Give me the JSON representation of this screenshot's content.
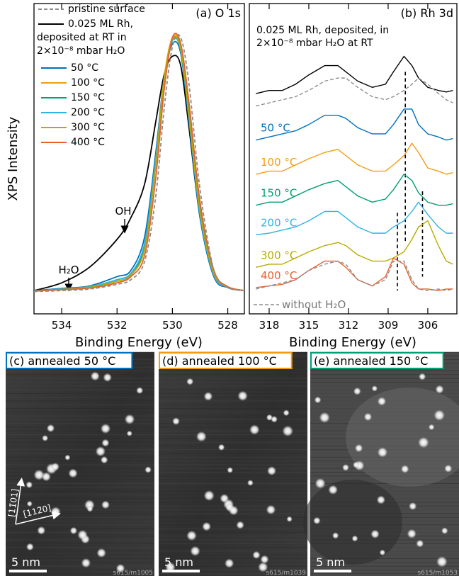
{
  "chart_data": [
    {
      "type": "line",
      "title": "(a) O 1s",
      "y_label": "XPS Intensity",
      "x_label": "Binding Energy (eV)",
      "x": [
        535,
        534,
        533,
        532,
        531.5,
        531,
        530.6,
        530.3,
        530,
        529.7,
        529.4,
        529,
        528.5,
        528,
        527.4
      ],
      "xlim": [
        535,
        527.4
      ],
      "xticks": [
        534,
        532,
        530,
        528
      ],
      "ylim": [
        0,
        1
      ],
      "series": [
        {
          "name": "pristine surface",
          "color": "#8c8c8c",
          "dashed": true,
          "values": [
            0.072,
            0.075,
            0.08,
            0.095,
            0.11,
            0.17,
            0.38,
            0.66,
            0.86,
            0.89,
            0.74,
            0.4,
            0.14,
            0.085,
            0.075
          ]
        },
        {
          "name": "0.025 ML Rh, deposited at RT in 2×10⁻⁸ mbar H₂O",
          "color": "#000000",
          "values": [
            0.075,
            0.1,
            0.15,
            0.24,
            0.31,
            0.42,
            0.62,
            0.77,
            0.83,
            0.8,
            0.6,
            0.31,
            0.12,
            0.085,
            0.075
          ]
        },
        {
          "name": "50 °C",
          "color": "#0072bd",
          "values": [
            0.075,
            0.082,
            0.09,
            0.12,
            0.14,
            0.25,
            0.52,
            0.76,
            0.87,
            0.84,
            0.62,
            0.31,
            0.12,
            0.085,
            0.075
          ]
        },
        {
          "name": "100 °C",
          "color": "#f39c12",
          "values": [
            0.074,
            0.08,
            0.088,
            0.11,
            0.13,
            0.22,
            0.5,
            0.76,
            0.89,
            0.86,
            0.64,
            0.33,
            0.13,
            0.087,
            0.075
          ]
        },
        {
          "name": "150 °C",
          "color": "#009e73",
          "values": [
            0.074,
            0.08,
            0.087,
            0.11,
            0.13,
            0.22,
            0.49,
            0.74,
            0.88,
            0.86,
            0.65,
            0.34,
            0.13,
            0.087,
            0.075
          ]
        },
        {
          "name": "200 °C",
          "color": "#2eb4e6",
          "values": [
            0.074,
            0.08,
            0.087,
            0.11,
            0.13,
            0.23,
            0.5,
            0.75,
            0.88,
            0.85,
            0.63,
            0.32,
            0.125,
            0.086,
            0.075
          ]
        },
        {
          "name": "300 °C",
          "color": "#b8aa00",
          "values": [
            0.073,
            0.079,
            0.085,
            0.105,
            0.125,
            0.21,
            0.48,
            0.75,
            0.885,
            0.855,
            0.64,
            0.33,
            0.13,
            0.087,
            0.075
          ]
        },
        {
          "name": "400 °C",
          "color": "#e8612c",
          "values": [
            0.073,
            0.078,
            0.083,
            0.1,
            0.12,
            0.19,
            0.44,
            0.72,
            0.89,
            0.87,
            0.68,
            0.36,
            0.14,
            0.088,
            0.075
          ]
        }
      ],
      "annotations": [
        "OH",
        "H₂O"
      ]
    },
    {
      "type": "line",
      "title": "(b) Rh 3d",
      "x_label": "Binding Energy (eV)",
      "annotation": "0.025 ML Rh, deposited, in 2×10⁻⁸ mbar H₂O at RT",
      "x": [
        319,
        318,
        317,
        316,
        315,
        313.8,
        312.8,
        312.2,
        311.3,
        310.2,
        309.2,
        308.6,
        307.8,
        307.2,
        306.7,
        306,
        305.2,
        304.6,
        304.1
      ],
      "xlim": [
        319.5,
        303.8
      ],
      "xticks": [
        318,
        315,
        312,
        309,
        306
      ],
      "ylim": [
        0,
        100
      ],
      "series": [
        {
          "color": "#000000",
          "values": [
            71,
            72,
            72,
            74,
            77,
            80,
            80,
            78,
            75,
            73,
            74,
            78,
            83,
            80,
            76,
            73,
            72,
            71.5,
            72
          ]
        },
        {
          "color": "#8c8c8c",
          "dashed": true,
          "values": [
            67,
            68,
            69,
            70,
            72,
            75,
            76,
            76,
            73,
            70,
            69,
            70,
            72,
            74,
            76,
            74,
            71,
            69,
            68
          ]
        },
        {
          "name": "50 °C",
          "color": "#0072bd",
          "values": [
            56,
            57,
            58,
            59,
            61,
            64,
            64,
            63,
            60,
            58,
            58,
            61,
            66,
            66,
            61,
            58,
            57,
            56,
            56.5
          ]
        },
        {
          "name": "100 °C",
          "color": "#f39c12",
          "values": [
            45,
            46,
            46,
            48,
            50,
            52,
            53,
            51,
            48,
            46,
            46,
            48,
            51,
            55,
            52,
            47,
            46,
            45,
            45.5
          ]
        },
        {
          "name": "150 °C",
          "color": "#009e73",
          "values": [
            35,
            36,
            36,
            38,
            40,
            42,
            43,
            41,
            38,
            36,
            37,
            40,
            45,
            43,
            39,
            36,
            35,
            35,
            35.5
          ]
        },
        {
          "name": "200 °C",
          "color": "#2eb4e6",
          "values": [
            25.5,
            26,
            27,
            28,
            30,
            33,
            33,
            31,
            28,
            26,
            26,
            28,
            30,
            33,
            36,
            32,
            28,
            26,
            26
          ]
        },
        {
          "name": "300 °C",
          "color": "#b8aa00",
          "values": [
            15,
            16,
            16,
            18,
            20,
            22,
            23,
            22,
            19,
            17,
            17,
            18,
            20,
            24,
            28,
            30,
            22,
            17,
            16
          ]
        },
        {
          "name": "400 °C",
          "color": "#e8612c",
          "values": [
            8.5,
            9,
            9.5,
            11,
            14,
            17,
            17,
            15,
            11,
            9,
            12,
            18,
            16,
            10,
            8,
            8,
            7.5,
            8,
            8
          ]
        },
        {
          "name": "without H₂O",
          "color": "#8c8c8c",
          "dashed": true,
          "values": [
            8,
            9,
            10,
            11,
            14,
            16,
            17,
            16,
            11,
            9,
            11,
            17,
            17,
            11,
            8,
            7.5,
            8,
            7.5,
            8
          ]
        }
      ],
      "guides": [
        {
          "x": 307.7,
          "from": 78,
          "to": 23.5
        },
        {
          "x": 308.3,
          "from": 32.6,
          "to": 7.5
        },
        {
          "x": 306.4,
          "from": 39.5,
          "to": 12
        }
      ]
    }
  ],
  "images": [
    {
      "title": "(c) annealed 50 °C",
      "border": "#0072bd",
      "scale": "5 nm",
      "file": "s615/m1005",
      "directions": [
        "[11̄01]",
        "[112̄0]"
      ]
    },
    {
      "title": "(d) annealed 100 °C",
      "border": "#f39c12",
      "scale": "5 nm",
      "file": "s615/m1039"
    },
    {
      "title": "(e) annealed 150 °C",
      "border": "#009e73",
      "scale": "5 nm",
      "file": "s615/m1053"
    }
  ]
}
